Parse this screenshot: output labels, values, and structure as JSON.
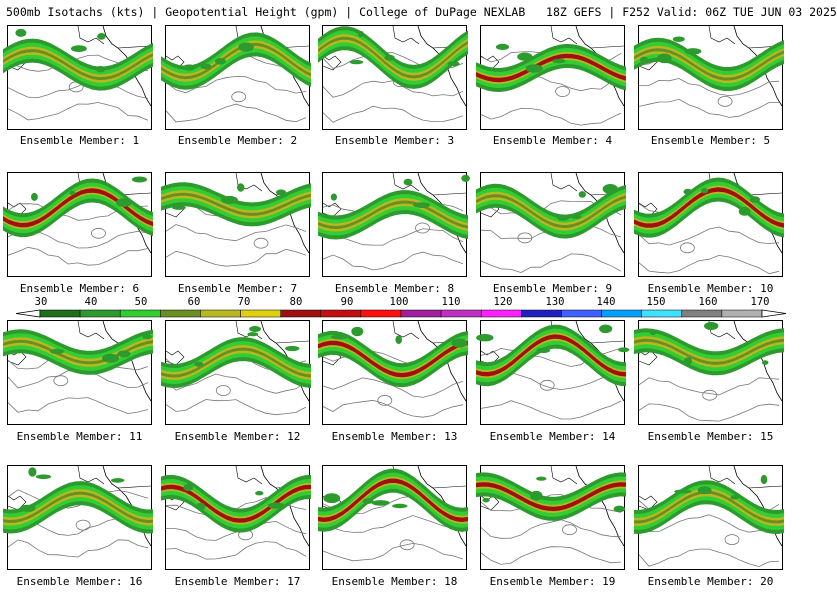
{
  "header": {
    "title": "500mb Isotachs (kts) | Geopotential Height (gpm) | College of DuPage NEXLAB   18Z GEFS | F252 Valid: 06Z TUE JUN 03 2025"
  },
  "members": [
    {
      "label": "Ensemble Member: 1",
      "jet_strength": "moderate"
    },
    {
      "label": "Ensemble Member: 2",
      "jet_strength": "moderate"
    },
    {
      "label": "Ensemble Member: 3",
      "jet_strength": "moderate"
    },
    {
      "label": "Ensemble Member: 4",
      "jet_strength": "strong"
    },
    {
      "label": "Ensemble Member: 5",
      "jet_strength": "moderate"
    },
    {
      "label": "Ensemble Member: 6",
      "jet_strength": "strong"
    },
    {
      "label": "Ensemble Member: 7",
      "jet_strength": "moderate"
    },
    {
      "label": "Ensemble Member: 8",
      "jet_strength": "moderate"
    },
    {
      "label": "Ensemble Member: 9",
      "jet_strength": "moderate"
    },
    {
      "label": "Ensemble Member: 10",
      "jet_strength": "strong"
    },
    {
      "label": "Ensemble Member: 11",
      "jet_strength": "moderate"
    },
    {
      "label": "Ensemble Member: 12",
      "jet_strength": "moderate"
    },
    {
      "label": "Ensemble Member: 13",
      "jet_strength": "strong"
    },
    {
      "label": "Ensemble Member: 14",
      "jet_strength": "strong"
    },
    {
      "label": "Ensemble Member: 15",
      "jet_strength": "moderate"
    },
    {
      "label": "Ensemble Member: 16",
      "jet_strength": "moderate"
    },
    {
      "label": "Ensemble Member: 17",
      "jet_strength": "strong"
    },
    {
      "label": "Ensemble Member: 18",
      "jet_strength": "strong"
    },
    {
      "label": "Ensemble Member: 19",
      "jet_strength": "strong"
    },
    {
      "label": "Ensemble Member: 20",
      "jet_strength": "moderate"
    }
  ],
  "colorbar": {
    "ticks": [
      "30",
      "40",
      "50",
      "60",
      "70",
      "80",
      "90",
      "100",
      "110",
      "120",
      "130",
      "140",
      "150",
      "160",
      "170"
    ],
    "colors": [
      "#1e6e1e",
      "#2d9a2d",
      "#32cd32",
      "#6b8e23",
      "#b8b820",
      "#e0d010",
      "#a01010",
      "#c01010",
      "#ff1010",
      "#a020a0",
      "#c030c0",
      "#ff20ff",
      "#2020c0",
      "#4060ff",
      "#00a0ff",
      "#40e0ff",
      "#808080",
      "#b0b0b0"
    ]
  }
}
